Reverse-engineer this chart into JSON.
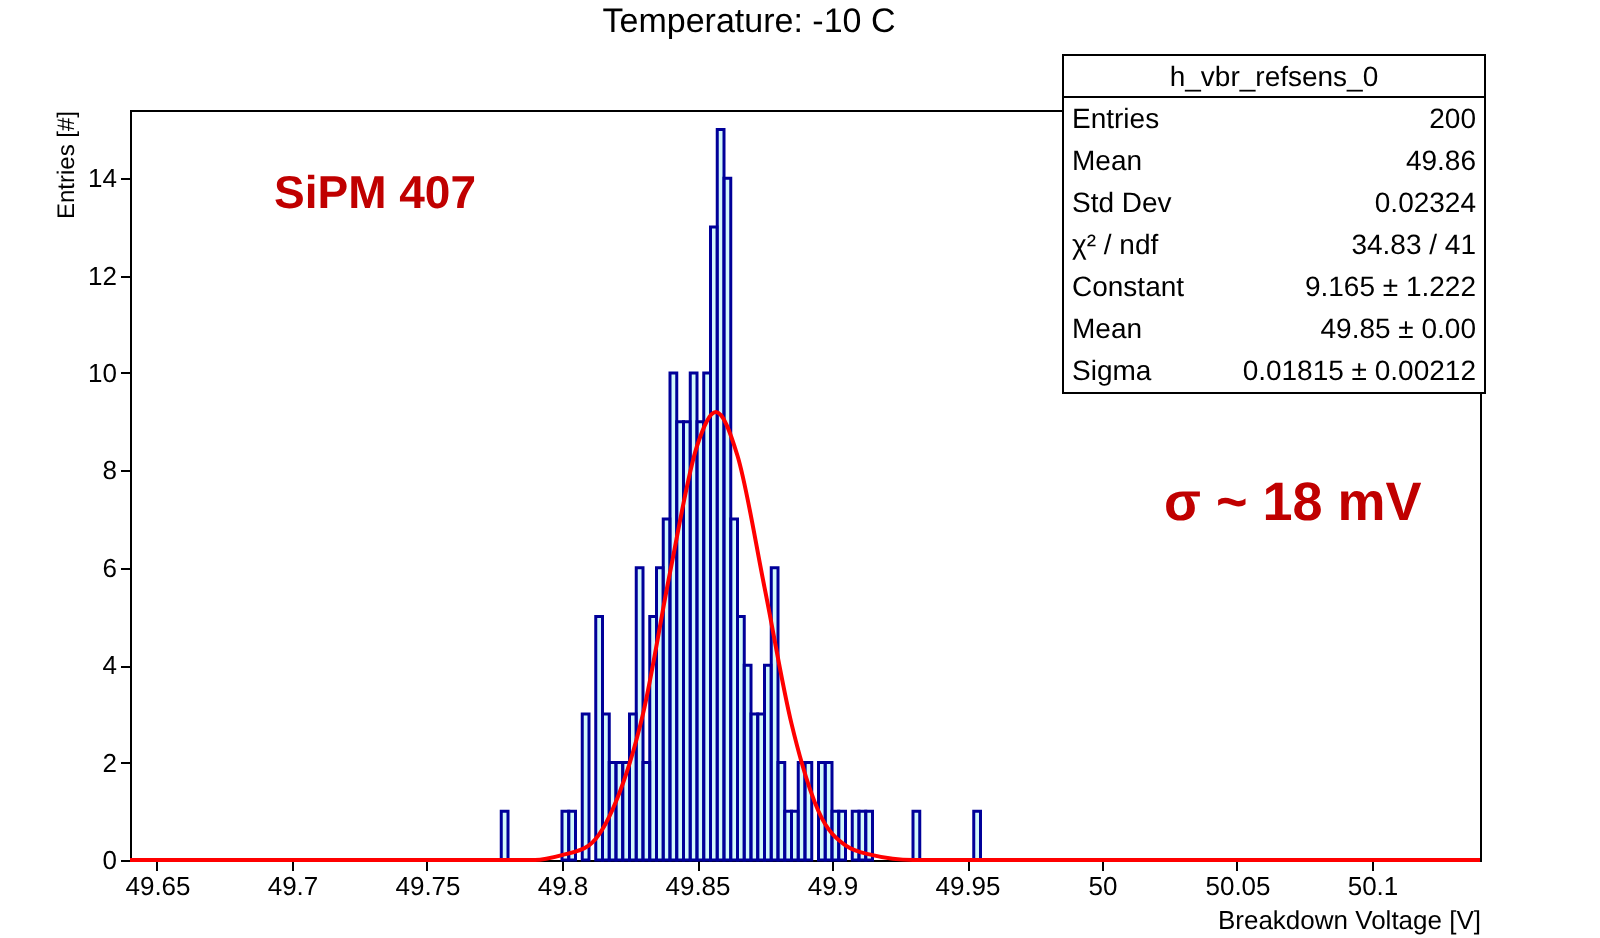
{
  "chart_data": {
    "type": "histogram",
    "title": "Temperature: -10 C",
    "xlabel": "Breakdown Voltage [V]",
    "ylabel": "Entries [#]",
    "bins": [
      49.7775,
      49.78,
      49.7825,
      49.785,
      49.7875,
      49.79,
      49.7925,
      49.795,
      49.7975,
      49.8,
      49.8025,
      49.805,
      49.8075,
      49.81,
      49.8125,
      49.815,
      49.8175,
      49.82,
      49.8225,
      49.825,
      49.8275,
      49.83,
      49.8325,
      49.835,
      49.8375,
      49.84,
      49.8425,
      49.845,
      49.8475,
      49.85,
      49.8525,
      49.855,
      49.8575,
      49.86,
      49.8625,
      49.865,
      49.8675,
      49.87,
      49.8725,
      49.875,
      49.8775,
      49.88,
      49.8825,
      49.885,
      49.8875,
      49.89,
      49.8925,
      49.895,
      49.8975,
      49.9,
      49.9025,
      49.905,
      49.9075,
      49.91,
      49.9125,
      49.915,
      49.9175,
      49.92,
      49.9225,
      49.925,
      49.9275,
      49.93,
      49.9325,
      49.935,
      49.9375,
      49.94,
      49.9425,
      49.945,
      49.9475,
      49.95,
      49.9525,
      49.955
    ],
    "series": [
      {
        "color": "#000099",
        "values": [
          1,
          0,
          0,
          0,
          0,
          0,
          0,
          0,
          0,
          1,
          1,
          0,
          3,
          0,
          5,
          3,
          2,
          2,
          2,
          3,
          6,
          2,
          5,
          6,
          7,
          10,
          9,
          9,
          10,
          9,
          10,
          13,
          15,
          14,
          7,
          5,
          4,
          3,
          3,
          4,
          6,
          2,
          1,
          1,
          2,
          2,
          0,
          2,
          2,
          1,
          1,
          0,
          1,
          1,
          1,
          0,
          0,
          0,
          0,
          0,
          0,
          1,
          0,
          0,
          0,
          0,
          0,
          0,
          0,
          0,
          1
        ]
      },
      {
        "type": "line",
        "color": "#ff0000",
        "x": [
          49.64,
          49.79,
          49.8,
          49.81,
          49.82,
          49.83,
          49.84,
          49.85,
          49.857,
          49.865,
          49.875,
          49.885,
          49.895,
          49.905,
          49.915,
          49.93,
          50.14
        ],
        "values": [
          0,
          0,
          0.1,
          0.3,
          1.2,
          3.0,
          5.9,
          8.5,
          9.2,
          8.3,
          5.6,
          2.8,
          1.0,
          0.3,
          0.1,
          0,
          0
        ]
      }
    ],
    "xlim": [
      49.64,
      50.14
    ],
    "xticks": [
      49.65,
      49.7,
      49.75,
      49.8,
      49.85,
      49.9,
      49.95,
      50,
      50.05,
      50.1
    ],
    "ylim": [
      0,
      15.4
    ],
    "yticks": [
      0,
      2,
      4,
      6,
      8,
      10,
      12,
      14
    ],
    "grid": false,
    "annotations": [
      "h_vbr_refsens_0",
      "Entries",
      "200",
      "Mean",
      "49.86",
      "Std Dev",
      "0.02324",
      "χ² / ndf",
      "34.83 / 41",
      "Constant",
      "9.165 ± 1.222",
      "Mean",
      "49.85 ± 0.00",
      "Sigma",
      "0.01815 ± 0.00212",
      "SiPM 407",
      "σ ~ 18 mV"
    ]
  }
}
